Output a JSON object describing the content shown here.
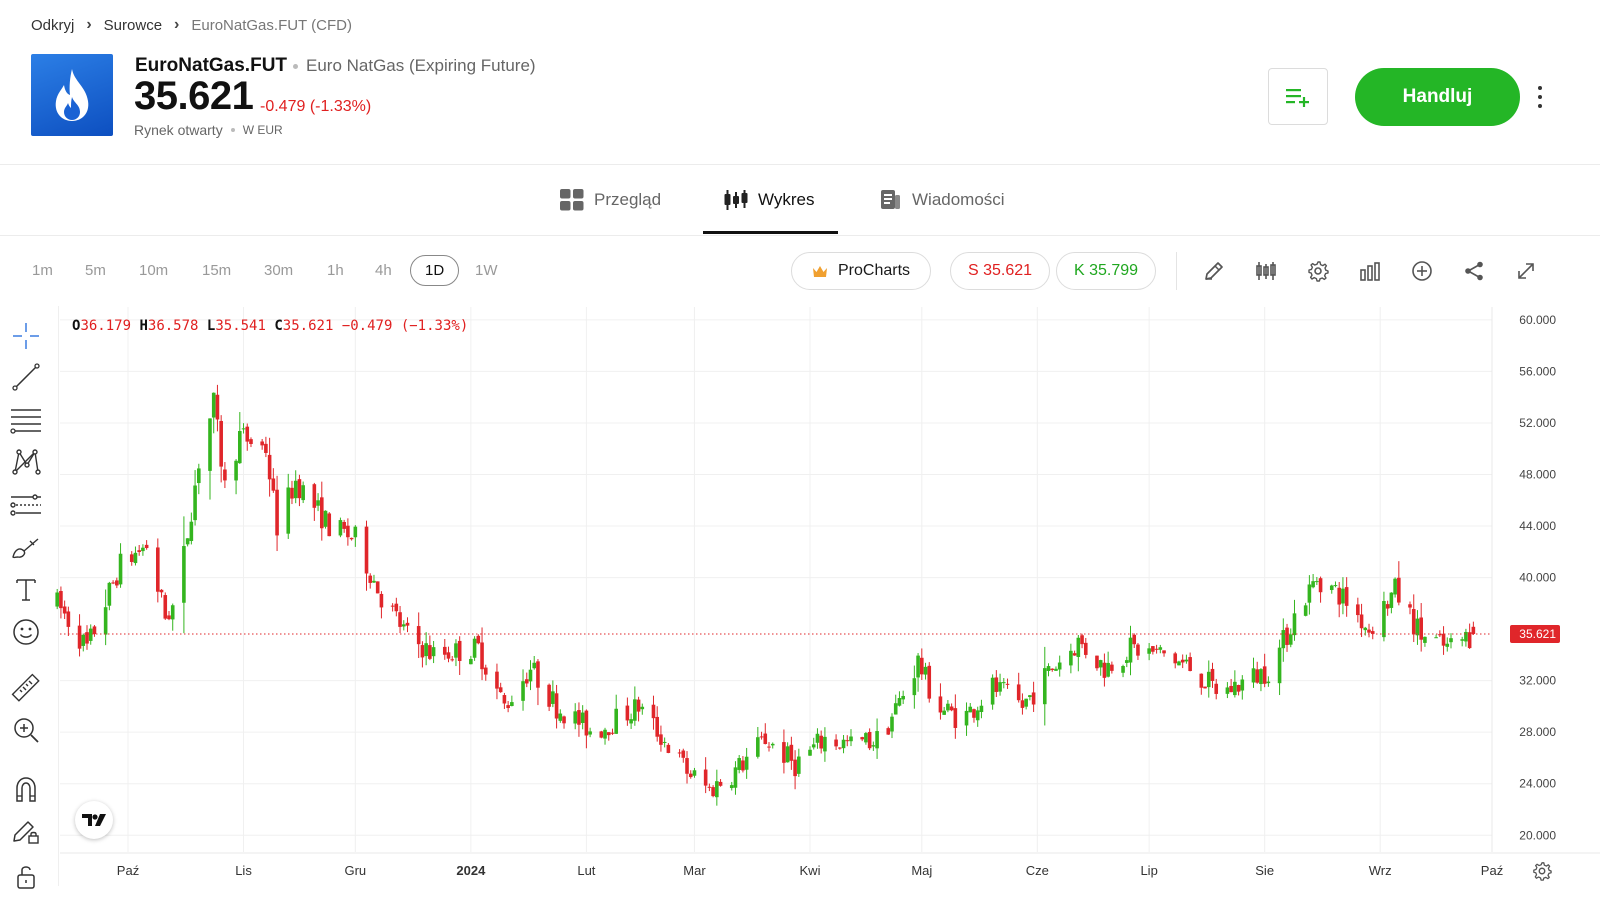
{
  "breadcrumb": {
    "items": [
      "Odkryj",
      "Surowce",
      "EuroNatGas.FUT (CFD)"
    ]
  },
  "instrument": {
    "symbol": "EuroNatGas.FUT",
    "full_name": "Euro NatGas (Expiring Future)",
    "price": "35.621",
    "change": "-0.479 (-1.33%)",
    "market_status": "Rynek otwarty",
    "currency": "W EUR",
    "logo_icon": "flame-icon"
  },
  "actions": {
    "trade_label": "Handluj",
    "watchlist_icon": "add-to-list-icon",
    "more_icon": "more-vertical-icon"
  },
  "tabs": [
    {
      "label": "Przegląd",
      "icon": "grid-icon"
    },
    {
      "label": "Wykres",
      "icon": "candles-icon",
      "active": true
    },
    {
      "label": "Wiadomości",
      "icon": "news-icon"
    }
  ],
  "timeframes": [
    "1m",
    "5m",
    "10m",
    "15m",
    "30m",
    "1h",
    "4h",
    "1D",
    "1W"
  ],
  "selected_timeframe": "1D",
  "prochart_label": "ProCharts",
  "sell_label": "S 35.621",
  "buy_label": "K 35.799",
  "colors": {
    "up": "#34b51f",
    "down": "#e0262a",
    "trade_green": "#24b626",
    "sell_red": "#e02020",
    "buy_green": "#1fa71f",
    "crown": "#f0a030"
  },
  "ohlc": {
    "o_label": "O",
    "o": "36.179",
    "h_label": "H",
    "h": "36.578",
    "l_label": "L",
    "l": "35.541",
    "c_label": "C",
    "c": "35.621",
    "chg": "−0.479 (−1.33%)"
  },
  "chart_data": {
    "type": "candlestick",
    "timeframe": "1D",
    "last_price": "35.621",
    "y_ticks": [
      "60.000",
      "56.000",
      "52.000",
      "48.000",
      "44.000",
      "40.000",
      "32.000",
      "28.000",
      "24.000",
      "20.000"
    ],
    "ylim": [
      18.7,
      61.0
    ],
    "x_ticks": [
      "Paź",
      "Lis",
      "Gru",
      "2024",
      "Lut",
      "Mar",
      "Kwi",
      "Maj",
      "Cze",
      "Lip",
      "Sie",
      "Wrz",
      "Paź"
    ],
    "x_tick_dates": [
      "2023-10-01",
      "2023-11-01",
      "2023-12-01",
      "2024-01-01",
      "2024-02-01",
      "2024-03-01",
      "2024-04-01",
      "2024-05-01",
      "2024-06-01",
      "2024-07-01",
      "2024-08-01",
      "2024-09-01",
      "2024-10-01"
    ],
    "bold_x_tick": "2024",
    "anchors": [
      [
        "2023-09-12",
        38.0
      ],
      [
        "2023-09-20",
        34.5
      ],
      [
        "2023-09-29",
        41.0
      ],
      [
        "2023-10-06",
        42.5
      ],
      [
        "2023-10-11",
        37.0
      ],
      [
        "2023-10-14",
        38.0
      ],
      [
        "2023-10-20",
        49.0
      ],
      [
        "2023-10-24",
        53.5
      ],
      [
        "2023-10-27",
        47.0
      ],
      [
        "2023-10-31",
        51.0
      ],
      [
        "2023-11-07",
        50.0
      ],
      [
        "2023-11-10",
        44.0
      ],
      [
        "2023-11-15",
        47.5
      ],
      [
        "2023-11-24",
        44.0
      ],
      [
        "2023-12-01",
        43.0
      ],
      [
        "2023-12-08",
        38.5
      ],
      [
        "2023-12-15",
        35.5
      ],
      [
        "2023-12-22",
        34.0
      ],
      [
        "2024-01-03",
        34.5
      ],
      [
        "2024-01-10",
        30.0
      ],
      [
        "2024-01-17",
        33.0
      ],
      [
        "2024-01-24",
        30.0
      ],
      [
        "2024-02-03",
        28.0
      ],
      [
        "2024-02-15",
        30.0
      ],
      [
        "2024-02-28",
        25.0
      ],
      [
        "2024-03-05",
        23.5
      ],
      [
        "2024-03-12",
        25.0
      ],
      [
        "2024-03-20",
        27.5
      ],
      [
        "2024-03-28",
        25.5
      ],
      [
        "2024-04-05",
        27.5
      ],
      [
        "2024-04-12",
        27.0
      ],
      [
        "2024-04-20",
        27.5
      ],
      [
        "2024-04-26",
        31.0
      ],
      [
        "2024-04-30",
        33.5
      ],
      [
        "2024-05-05",
        30.0
      ],
      [
        "2024-05-12",
        29.0
      ],
      [
        "2024-05-20",
        31.5
      ],
      [
        "2024-05-28",
        30.0
      ],
      [
        "2024-06-05",
        33.0
      ],
      [
        "2024-06-12",
        35.0
      ],
      [
        "2024-06-19",
        33.0
      ],
      [
        "2024-06-26",
        34.5
      ],
      [
        "2024-07-05",
        34.0
      ],
      [
        "2024-07-12",
        33.0
      ],
      [
        "2024-07-20",
        31.0
      ],
      [
        "2024-07-27",
        32.0
      ],
      [
        "2024-08-03",
        33.0
      ],
      [
        "2024-08-09",
        37.0
      ],
      [
        "2024-08-15",
        40.0
      ],
      [
        "2024-08-22",
        38.5
      ],
      [
        "2024-08-29",
        36.0
      ],
      [
        "2024-09-05",
        39.0
      ],
      [
        "2024-09-12",
        35.5
      ],
      [
        "2024-09-19",
        34.5
      ],
      [
        "2024-09-26",
        35.621
      ]
    ],
    "grid": true,
    "legend": "none"
  }
}
